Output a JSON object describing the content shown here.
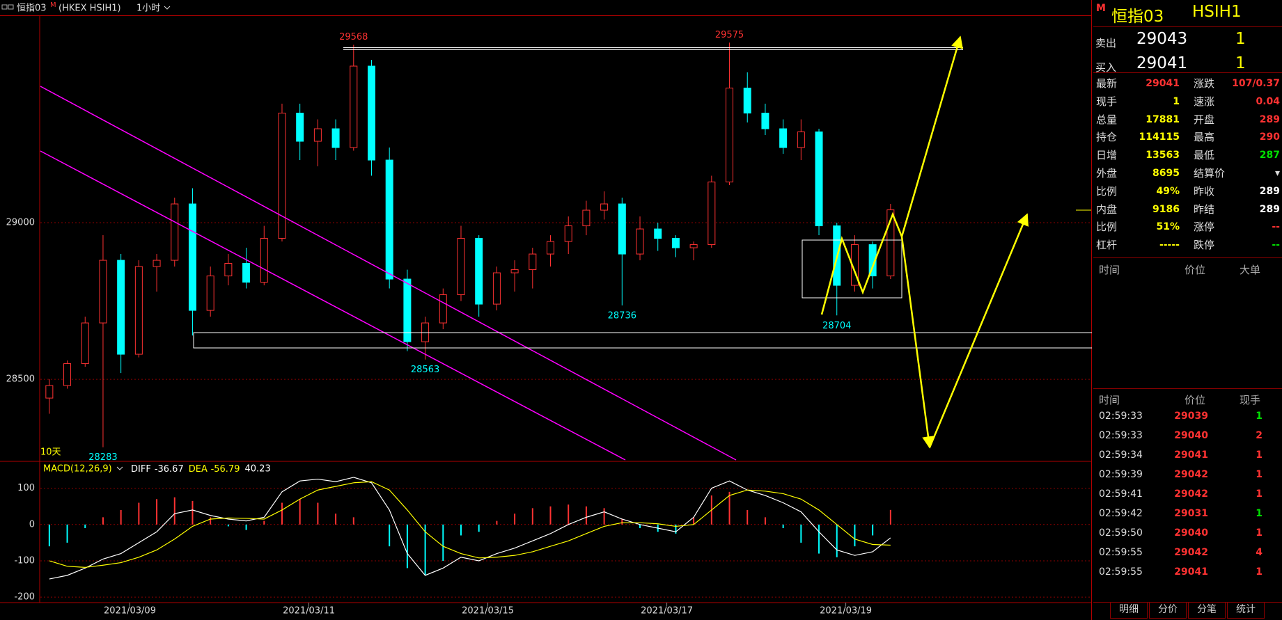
{
  "header": {
    "symbol": "恒指03",
    "flag": "M",
    "exchange": "(HKEX HSIH1)",
    "period": "1小时"
  },
  "chart_data": [
    {
      "type": "candlestick",
      "corner_label": "10天",
      "up_color": "#ff3232",
      "down_color": "#00ffff",
      "xlim": [
        -0.5,
        58.25
      ],
      "xticks": [
        {
          "value": 4.5,
          "label": "2021/03/09"
        },
        {
          "value": 14.5,
          "label": "2021/03/11"
        },
        {
          "value": 24.5,
          "label": "2021/03/15"
        },
        {
          "value": 34.5,
          "label": "2021/03/17"
        },
        {
          "value": 44.5,
          "label": "2021/03/19"
        }
      ],
      "ylim": [
        28238,
        29660
      ],
      "yticks": [
        28500,
        29000
      ],
      "grid": true,
      "candles": [
        [
          28440,
          28500,
          28390,
          28480
        ],
        [
          28480,
          28560,
          28470,
          28550
        ],
        [
          28550,
          28700,
          28540,
          28680
        ],
        [
          28680,
          28960,
          28283,
          28880
        ],
        [
          28880,
          28900,
          28520,
          28580
        ],
        [
          28580,
          28880,
          28570,
          28860
        ],
        [
          28860,
          28900,
          28780,
          28880
        ],
        [
          28880,
          29080,
          28860,
          29060
        ],
        [
          29060,
          29110,
          28640,
          28720
        ],
        [
          28720,
          28860,
          28700,
          28830
        ],
        [
          28830,
          28900,
          28800,
          28870
        ],
        [
          28870,
          28920,
          28790,
          28810
        ],
        [
          28810,
          28990,
          28800,
          28950
        ],
        [
          28950,
          29380,
          28940,
          29350
        ],
        [
          29350,
          29380,
          29200,
          29260
        ],
        [
          29260,
          29330,
          29180,
          29300
        ],
        [
          29300,
          29330,
          29200,
          29240
        ],
        [
          29240,
          29568,
          29230,
          29500
        ],
        [
          29500,
          29520,
          29150,
          29200
        ],
        [
          29200,
          29240,
          28790,
          28820
        ],
        [
          28820,
          28850,
          28590,
          28620
        ],
        [
          28620,
          28700,
          28563,
          28680
        ],
        [
          28680,
          28790,
          28660,
          28770
        ],
        [
          28770,
          28990,
          28750,
          28950
        ],
        [
          28950,
          28960,
          28700,
          28740
        ],
        [
          28740,
          28860,
          28720,
          28840
        ],
        [
          28840,
          28880,
          28780,
          28850
        ],
        [
          28850,
          28920,
          28790,
          28900
        ],
        [
          28900,
          28960,
          28860,
          28940
        ],
        [
          28940,
          29020,
          28900,
          28990
        ],
        [
          28990,
          29070,
          28960,
          29040
        ],
        [
          29040,
          29100,
          29010,
          29060
        ],
        [
          29060,
          29080,
          28736,
          28900
        ],
        [
          28900,
          29020,
          28880,
          28980
        ],
        [
          28980,
          29000,
          28910,
          28950
        ],
        [
          28950,
          28960,
          28890,
          28920
        ],
        [
          28920,
          28940,
          28880,
          28930
        ],
        [
          28930,
          29150,
          28920,
          29130
        ],
        [
          29130,
          29575,
          29120,
          29430
        ],
        [
          29430,
          29480,
          29320,
          29350
        ],
        [
          29350,
          29380,
          29280,
          29300
        ],
        [
          29300,
          29330,
          29220,
          29240
        ],
        [
          29240,
          29330,
          29200,
          29290
        ],
        [
          29290,
          29300,
          28960,
          28990
        ],
        [
          28990,
          29000,
          28704,
          28800
        ],
        [
          28800,
          28960,
          28780,
          28930
        ],
        [
          28930,
          28940,
          28790,
          28830
        ],
        [
          28830,
          29060,
          28820,
          29041
        ]
      ],
      "annotations": [
        {
          "x": 17,
          "value": 29568
        },
        {
          "x": 38,
          "value": 29575
        },
        {
          "x": 3,
          "value": 28283
        },
        {
          "x": 21,
          "value": 28563
        },
        {
          "x": 32,
          "value": 28736
        },
        {
          "x": 44,
          "value": 28704
        }
      ]
    },
    {
      "type": "macd",
      "title": "MACD(12,26,9)",
      "xlim": [
        -0.5,
        58.25
      ],
      "ylim": [
        -215,
        174
      ],
      "yticks": [
        100,
        0,
        -100,
        -200
      ],
      "grid": true,
      "up_color": "#ff3232",
      "down_color": "#00ffff",
      "series": [
        {
          "name": "DIFF",
          "color": "#ffffff",
          "values": [
            -150,
            -140,
            -120,
            -95,
            -80,
            -50,
            -20,
            30,
            40,
            25,
            15,
            10,
            20,
            90,
            120,
            125,
            118,
            130,
            115,
            40,
            -80,
            -140,
            -120,
            -90,
            -100,
            -80,
            -65,
            -45,
            -25,
            0,
            20,
            35,
            15,
            0,
            -10,
            -20,
            20,
            100,
            120,
            95,
            80,
            60,
            35,
            -20,
            -70,
            -85,
            -75,
            -36.67
          ]
        },
        {
          "name": "DEA",
          "color": "#ffff00",
          "values": [
            -100,
            -115,
            -118,
            -112,
            -105,
            -90,
            -70,
            -40,
            -5,
            15,
            18,
            17,
            15,
            40,
            70,
            95,
            105,
            115,
            118,
            95,
            40,
            -20,
            -60,
            -80,
            -92,
            -90,
            -85,
            -75,
            -60,
            -45,
            -25,
            -5,
            5,
            5,
            2,
            -5,
            0,
            40,
            80,
            95,
            92,
            85,
            70,
            40,
            0,
            -40,
            -55,
            -56.79
          ]
        }
      ],
      "bars": [
        -60,
        -50,
        -10,
        20,
        40,
        60,
        70,
        75,
        65,
        20,
        -5,
        -15,
        10,
        60,
        70,
        60,
        30,
        20,
        0,
        -60,
        -120,
        -140,
        -100,
        -30,
        -20,
        10,
        30,
        45,
        50,
        55,
        50,
        45,
        15,
        -10,
        -20,
        -25,
        20,
        80,
        90,
        40,
        20,
        -10,
        -50,
        -80,
        -90,
        -60,
        -30,
        40.23
      ]
    }
  ],
  "quote_panel": {
    "flag": "M",
    "symbol": "恒指03",
    "code": "HSIH1",
    "ask": {
      "label": "卖出",
      "price": 29043,
      "volume": 1
    },
    "bid": {
      "label": "买入",
      "price": 29041,
      "volume": 1
    },
    "rows": [
      [
        {
          "label": "最新",
          "value": 29041,
          "color": "#ff3232"
        },
        {
          "label": "涨跌",
          "value": "107/0.37",
          "color": "#ff3232"
        }
      ],
      [
        {
          "label": "现手",
          "value": 1,
          "color": "#ffff00"
        },
        {
          "label": "速涨",
          "value": "0.04",
          "color": "#ff3232"
        }
      ],
      [
        {
          "label": "总量",
          "value": 17881,
          "color": "#ffff00"
        },
        {
          "label": "开盘",
          "value": 289,
          "color": "#ff3232"
        }
      ],
      [
        {
          "label": "持仓",
          "value": 114115,
          "color": "#ffff00"
        },
        {
          "label": "最高",
          "value": 290,
          "color": "#ff3232"
        }
      ],
      [
        {
          "label": "日增",
          "value": 13563,
          "color": "#ffff00"
        },
        {
          "label": "最低",
          "value": 287,
          "color": "#00e000"
        }
      ],
      [
        {
          "label": "外盘",
          "value": 8695,
          "color": "#ffff00"
        },
        {
          "label": "结算价",
          "value": "▾",
          "color": "#dddddd"
        }
      ],
      [
        {
          "label": "比例",
          "value": "49%",
          "color": "#ffff00"
        },
        {
          "label": "昨收",
          "value": 289,
          "color": "#ffffff"
        }
      ],
      [
        {
          "label": "内盘",
          "value": 9186,
          "color": "#ffff00"
        },
        {
          "label": "昨结",
          "value": 289,
          "color": "#ffffff"
        }
      ],
      [
        {
          "label": "比例",
          "value": "51%",
          "color": "#ffff00"
        },
        {
          "label": "涨停",
          "value": "--",
          "color": "#ff3232"
        }
      ],
      [
        {
          "label": "杠杆",
          "value": "-----",
          "color": "#ffff00"
        },
        {
          "label": "跌停",
          "value": "--",
          "color": "#00e000"
        }
      ]
    ],
    "big_orders": {
      "headers": [
        "时间",
        "价位",
        "大单"
      ]
    },
    "trades": {
      "headers": [
        "时间",
        "价位",
        "现手"
      ],
      "rows": [
        {
          "time": "02:59:33",
          "price": 29039,
          "volume": 1,
          "volume_color": "#00e000"
        },
        {
          "time": "02:59:33",
          "price": 29040,
          "volume": 2,
          "volume_color": "#ff3232"
        },
        {
          "time": "02:59:34",
          "price": 29041,
          "volume": 1,
          "volume_color": "#ff3232"
        },
        {
          "time": "02:59:39",
          "price": 29042,
          "volume": 1,
          "volume_color": "#ff3232"
        },
        {
          "time": "02:59:41",
          "price": 29042,
          "volume": 1,
          "volume_color": "#ff3232"
        },
        {
          "time": "02:59:42",
          "price": 29031,
          "volume": 1,
          "volume_color": "#00e000"
        },
        {
          "time": "02:59:50",
          "price": 29040,
          "volume": 1,
          "volume_color": "#ff3232"
        },
        {
          "time": "02:59:55",
          "price": 29042,
          "volume": 4,
          "volume_color": "#ff3232"
        },
        {
          "time": "02:59:55",
          "price": 29041,
          "volume": 1,
          "volume_color": "#ff3232"
        }
      ]
    },
    "tabs": [
      "明细",
      "分价",
      "分笔",
      "统计"
    ]
  }
}
